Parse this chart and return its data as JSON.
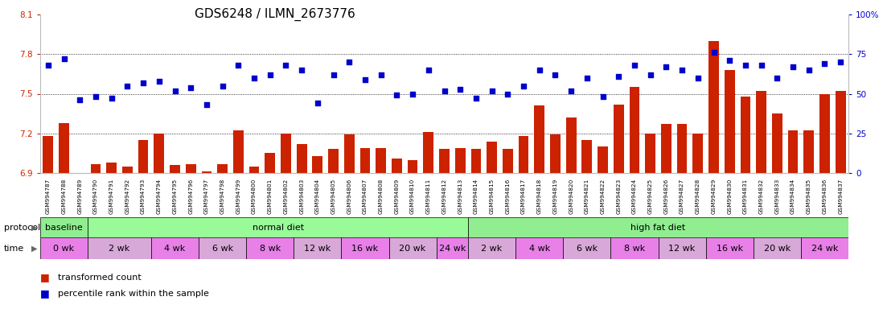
{
  "title": "GDS6248 / ILMN_2673776",
  "samples": [
    "GSM994787",
    "GSM994788",
    "GSM994789",
    "GSM994790",
    "GSM994791",
    "GSM994792",
    "GSM994793",
    "GSM994794",
    "GSM994795",
    "GSM994796",
    "GSM994797",
    "GSM994798",
    "GSM994799",
    "GSM994800",
    "GSM994801",
    "GSM994802",
    "GSM994803",
    "GSM994804",
    "GSM994805",
    "GSM994806",
    "GSM994807",
    "GSM994808",
    "GSM994809",
    "GSM994810",
    "GSM994811",
    "GSM994812",
    "GSM994813",
    "GSM994814",
    "GSM994815",
    "GSM994816",
    "GSM994817",
    "GSM994818",
    "GSM994819",
    "GSM994820",
    "GSM994821",
    "GSM994822",
    "GSM994823",
    "GSM994824",
    "GSM994825",
    "GSM994826",
    "GSM994827",
    "GSM994828",
    "GSM994829",
    "GSM994830",
    "GSM994831",
    "GSM994832",
    "GSM994833",
    "GSM994834",
    "GSM994835",
    "GSM994836",
    "GSM994837"
  ],
  "transformed_count": [
    7.18,
    7.28,
    6.9,
    6.97,
    6.98,
    6.95,
    7.15,
    7.2,
    6.96,
    6.97,
    6.91,
    6.97,
    7.22,
    6.95,
    7.05,
    7.2,
    7.12,
    7.03,
    7.08,
    7.19,
    7.09,
    7.09,
    7.01,
    7.0,
    7.21,
    7.08,
    7.09,
    7.08,
    7.14,
    7.08,
    7.18,
    7.41,
    7.19,
    7.32,
    7.15,
    7.1,
    7.42,
    7.55,
    7.2,
    7.27,
    7.27,
    7.2,
    7.9,
    7.68,
    7.48,
    7.52,
    7.35,
    7.22,
    7.22,
    7.5,
    7.52
  ],
  "percentile_rank": [
    68,
    72,
    46,
    48,
    47,
    55,
    57,
    58,
    52,
    54,
    43,
    55,
    68,
    60,
    62,
    68,
    65,
    44,
    62,
    70,
    59,
    62,
    49,
    50,
    65,
    52,
    53,
    47,
    52,
    50,
    55,
    65,
    62,
    52,
    60,
    48,
    61,
    68,
    62,
    67,
    65,
    60,
    76,
    71,
    68,
    68,
    60,
    67,
    65,
    69,
    70
  ],
  "protocol_spans": [
    {
      "label": "baseline",
      "start": 0,
      "end": 3,
      "color": "#90ee90"
    },
    {
      "label": "normal diet",
      "start": 3,
      "end": 27,
      "color": "#98fb98"
    },
    {
      "label": "high fat diet",
      "start": 27,
      "end": 51,
      "color": "#90ee90"
    }
  ],
  "time_groups": [
    {
      "label": "0 wk",
      "start": 0,
      "end": 3,
      "color": "#e880e8"
    },
    {
      "label": "2 wk",
      "start": 3,
      "end": 7,
      "color": "#d8a8d8"
    },
    {
      "label": "4 wk",
      "start": 7,
      "end": 10,
      "color": "#e880e8"
    },
    {
      "label": "6 wk",
      "start": 10,
      "end": 13,
      "color": "#d8a8d8"
    },
    {
      "label": "8 wk",
      "start": 13,
      "end": 16,
      "color": "#e880e8"
    },
    {
      "label": "12 wk",
      "start": 16,
      "end": 19,
      "color": "#d8a8d8"
    },
    {
      "label": "16 wk",
      "start": 19,
      "end": 22,
      "color": "#e880e8"
    },
    {
      "label": "20 wk",
      "start": 22,
      "end": 25,
      "color": "#d8a8d8"
    },
    {
      "label": "24 wk",
      "start": 25,
      "end": 27,
      "color": "#e880e8"
    },
    {
      "label": "2 wk",
      "start": 27,
      "end": 30,
      "color": "#d8a8d8"
    },
    {
      "label": "4 wk",
      "start": 30,
      "end": 33,
      "color": "#e880e8"
    },
    {
      "label": "6 wk",
      "start": 33,
      "end": 36,
      "color": "#d8a8d8"
    },
    {
      "label": "8 wk",
      "start": 36,
      "end": 39,
      "color": "#e880e8"
    },
    {
      "label": "12 wk",
      "start": 39,
      "end": 42,
      "color": "#d8a8d8"
    },
    {
      "label": "16 wk",
      "start": 42,
      "end": 45,
      "color": "#e880e8"
    },
    {
      "label": "20 wk",
      "start": 45,
      "end": 48,
      "color": "#d8a8d8"
    },
    {
      "label": "24 wk",
      "start": 48,
      "end": 51,
      "color": "#e880e8"
    }
  ],
  "bar_color": "#cc2200",
  "dot_color": "#0000cc",
  "ylim_left": [
    6.9,
    8.1
  ],
  "ylim_right": [
    0,
    100
  ],
  "yticks_left": [
    6.9,
    7.2,
    7.5,
    7.8,
    8.1
  ],
  "yticks_right": [
    0,
    25,
    50,
    75,
    100
  ],
  "ytick_dotted_left": [
    7.2,
    7.5,
    7.8
  ],
  "title_fontsize": 11
}
